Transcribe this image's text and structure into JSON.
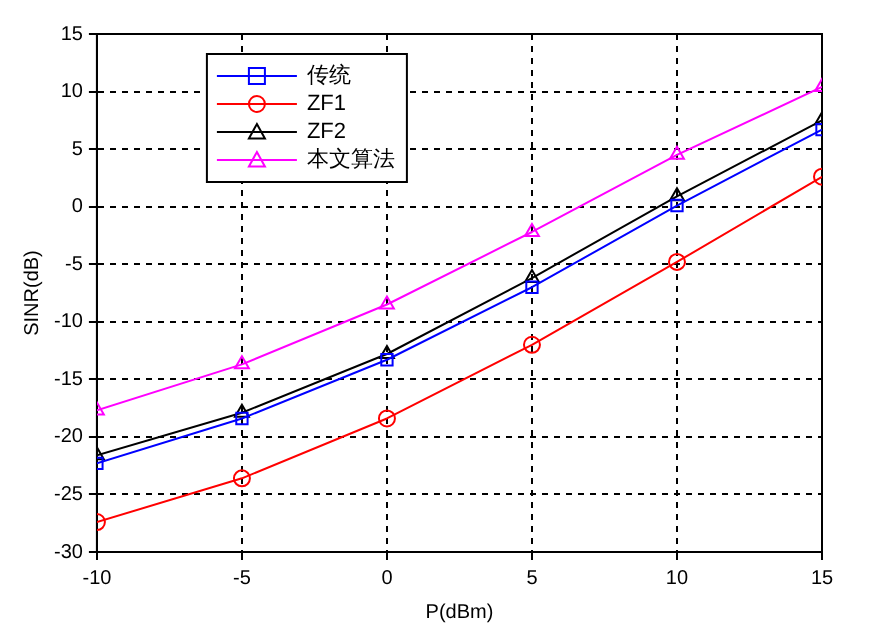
{
  "chart_data": {
    "type": "line",
    "xlabel": "P(dBm)",
    "ylabel": "SINR(dB)",
    "x": [
      -10,
      -5,
      0,
      5,
      10,
      15
    ],
    "series": [
      {
        "name": "传统",
        "color": "#0000ff",
        "marker": "square",
        "values": [
          -22.3,
          -18.4,
          -13.3,
          -7.0,
          0.1,
          6.7
        ]
      },
      {
        "name": "ZF1",
        "color": "#ff0000",
        "marker": "circle",
        "values": [
          -27.4,
          -23.6,
          -18.4,
          -12.0,
          -4.8,
          2.6
        ]
      },
      {
        "name": "ZF2",
        "color": "#000000",
        "marker": "triangle",
        "values": [
          -21.6,
          -17.9,
          -12.8,
          -6.2,
          0.9,
          7.5
        ]
      },
      {
        "name": "本文算法",
        "color": "#ff00ff",
        "marker": "triangle",
        "values": [
          -17.7,
          -13.7,
          -8.5,
          -2.2,
          4.5,
          10.4
        ]
      }
    ],
    "xlim": [
      -10,
      15
    ],
    "xticks": [
      -10,
      -5,
      0,
      5,
      10,
      15
    ],
    "ylim": [
      -30,
      15
    ],
    "yticks": [
      -30,
      -25,
      -20,
      -15,
      -10,
      -5,
      0,
      5,
      10,
      15
    ],
    "grid": true,
    "legend": "top left",
    "line_style": "solid"
  }
}
